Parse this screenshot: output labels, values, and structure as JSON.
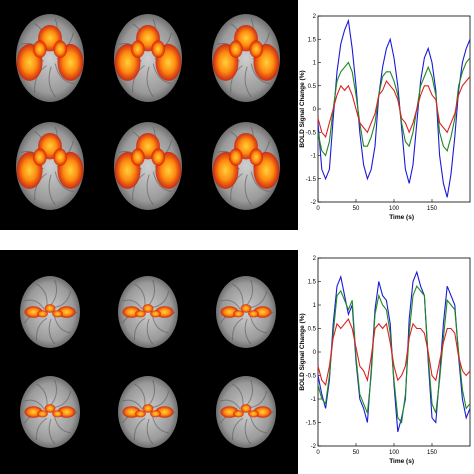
{
  "colors": {
    "blue": "#1a1ad8",
    "green": "#1e8a1e",
    "red": "#e02020",
    "activation_hot": "#ffd23a",
    "activation_cold": "#d21a00"
  },
  "brain_panels": [
    {
      "rows": 2,
      "cols": 3,
      "pattern": "temporal"
    },
    {
      "rows": 2,
      "cols": 3,
      "pattern": "motor"
    }
  ],
  "chart_data": [
    {
      "type": "line",
      "ylabel": "BOLD Signal Change (%)",
      "xlabel": "Time (s)",
      "xlim": [
        0,
        200
      ],
      "ylim": [
        -2,
        2
      ],
      "xticks": [
        "0",
        "50",
        "100",
        "150"
      ],
      "yticks": [
        "2",
        "1.5",
        "1",
        "0.5",
        "0",
        "-0.5",
        "-1",
        "-1.5",
        "-2"
      ],
      "series": [
        {
          "color": "#1a1ad8",
          "x": [
            0,
            5,
            10,
            15,
            20,
            25,
            30,
            35,
            40,
            45,
            50,
            55,
            60,
            65,
            70,
            75,
            80,
            85,
            90,
            95,
            100,
            105,
            110,
            115,
            120,
            125,
            130,
            135,
            140,
            145,
            150,
            155,
            160,
            165,
            170,
            175,
            180,
            185,
            190,
            195,
            200
          ],
          "y": [
            -0.3,
            -1.3,
            -1.5,
            -1.3,
            -0.2,
            0.8,
            1.4,
            1.7,
            1.9,
            1.3,
            0.5,
            -0.5,
            -1.2,
            -1.5,
            -1.3,
            -0.8,
            0.3,
            0.9,
            1.3,
            1.5,
            1.1,
            0.5,
            -0.4,
            -1.3,
            -1.6,
            -1.2,
            -0.3,
            0.6,
            1.1,
            1.3,
            1.0,
            0.4,
            -1.0,
            -1.6,
            -1.9,
            -1.4,
            -0.6,
            0.4,
            1.0,
            1.3,
            1.5
          ]
        },
        {
          "color": "#1e8a1e",
          "x": [
            0,
            5,
            10,
            15,
            20,
            25,
            30,
            35,
            40,
            45,
            50,
            55,
            60,
            65,
            70,
            75,
            80,
            85,
            90,
            95,
            100,
            105,
            110,
            115,
            120,
            125,
            130,
            135,
            140,
            145,
            150,
            155,
            160,
            165,
            170,
            175,
            180,
            185,
            190,
            195,
            200
          ],
          "y": [
            -0.5,
            -0.9,
            -1.0,
            -0.7,
            0.0,
            0.6,
            0.8,
            0.9,
            1.0,
            0.8,
            0.3,
            -0.3,
            -0.8,
            -0.8,
            -0.6,
            -0.3,
            0.3,
            0.7,
            0.8,
            0.8,
            0.6,
            0.3,
            -0.3,
            -0.7,
            -0.8,
            -0.5,
            0.0,
            0.5,
            0.7,
            0.9,
            0.7,
            0.3,
            -0.5,
            -0.8,
            -0.9,
            -0.6,
            -0.2,
            0.5,
            0.8,
            1.0,
            1.1
          ]
        },
        {
          "color": "#e02020",
          "x": [
            0,
            5,
            10,
            15,
            20,
            25,
            30,
            35,
            40,
            45,
            50,
            55,
            60,
            65,
            70,
            75,
            80,
            85,
            90,
            95,
            100,
            105,
            110,
            115,
            120,
            125,
            130,
            135,
            140,
            145,
            150,
            155,
            160,
            165,
            170,
            175,
            180,
            185,
            190,
            195,
            200
          ],
          "y": [
            -0.2,
            -0.5,
            -0.6,
            -0.3,
            0.0,
            0.3,
            0.5,
            0.4,
            0.5,
            0.3,
            0.0,
            -0.3,
            -0.4,
            -0.5,
            -0.3,
            -0.1,
            0.3,
            0.4,
            0.6,
            0.5,
            0.4,
            0.2,
            -0.2,
            -0.3,
            -0.5,
            -0.3,
            0.0,
            0.3,
            0.5,
            0.5,
            0.3,
            0.2,
            -0.3,
            -0.4,
            -0.5,
            -0.3,
            -0.1,
            0.3,
            0.5,
            0.6,
            0.7
          ]
        }
      ]
    },
    {
      "type": "line",
      "ylabel": "BOLD Signal Change (%)",
      "xlabel": "Time (s)",
      "xlim": [
        0,
        200
      ],
      "ylim": [
        -2,
        2
      ],
      "xticks": [
        "0",
        "50",
        "100",
        "150"
      ],
      "yticks": [
        "2",
        "1.5",
        "1",
        "0.5",
        "0",
        "-0.5",
        "-1",
        "-1.5",
        "-2"
      ],
      "series": [
        {
          "color": "#1a1ad8",
          "x": [
            0,
            5,
            10,
            15,
            20,
            25,
            30,
            35,
            40,
            45,
            50,
            55,
            60,
            65,
            70,
            75,
            80,
            85,
            90,
            95,
            100,
            105,
            110,
            115,
            120,
            125,
            130,
            135,
            140,
            145,
            150,
            155,
            160,
            165,
            170,
            175,
            180,
            185,
            190,
            195,
            200
          ],
          "y": [
            -0.5,
            -0.9,
            -1.2,
            -0.6,
            0.6,
            1.4,
            1.6,
            1.2,
            0.8,
            1.0,
            -0.2,
            -1.0,
            -1.2,
            -1.5,
            -0.4,
            0.9,
            1.5,
            1.2,
            1.1,
            0.6,
            -0.7,
            -1.7,
            -1.4,
            -1.0,
            0.7,
            1.5,
            1.7,
            1.4,
            1.2,
            -0.2,
            -1.4,
            -1.5,
            -0.5,
            0.6,
            1.4,
            1.2,
            1.0,
            -0.1,
            -1.0,
            -1.4,
            -1.2
          ]
        },
        {
          "color": "#1e8a1e",
          "x": [
            0,
            5,
            10,
            15,
            20,
            25,
            30,
            35,
            40,
            45,
            50,
            55,
            60,
            65,
            70,
            75,
            80,
            85,
            90,
            95,
            100,
            105,
            110,
            115,
            120,
            125,
            130,
            135,
            140,
            145,
            150,
            155,
            160,
            165,
            170,
            175,
            180,
            185,
            190,
            195,
            200
          ],
          "y": [
            -0.7,
            -1.0,
            -1.1,
            -0.5,
            0.4,
            1.2,
            1.3,
            1.1,
            0.9,
            1.1,
            -0.1,
            -0.9,
            -1.1,
            -1.3,
            -0.5,
            0.8,
            1.2,
            1.0,
            0.9,
            0.4,
            -0.6,
            -1.4,
            -1.5,
            -0.9,
            0.4,
            1.2,
            1.4,
            1.3,
            1.2,
            -0.1,
            -1.1,
            -1.3,
            -0.6,
            0.3,
            1.1,
            1.0,
            0.9,
            0.0,
            -0.8,
            -1.2,
            -1.1
          ]
        },
        {
          "color": "#e02020",
          "x": [
            0,
            5,
            10,
            15,
            20,
            25,
            30,
            35,
            40,
            45,
            50,
            55,
            60,
            65,
            70,
            75,
            80,
            85,
            90,
            95,
            100,
            105,
            110,
            115,
            120,
            125,
            130,
            135,
            140,
            145,
            150,
            155,
            160,
            165,
            170,
            175,
            180,
            185,
            190,
            195,
            200
          ],
          "y": [
            -0.3,
            -0.6,
            -0.7,
            -0.3,
            0.3,
            0.6,
            0.5,
            0.6,
            0.7,
            0.5,
            0.1,
            -0.3,
            -0.4,
            -0.6,
            -0.1,
            0.5,
            0.6,
            0.5,
            0.6,
            0.2,
            -0.3,
            -0.6,
            -0.5,
            -0.3,
            0.3,
            0.6,
            0.5,
            0.5,
            0.4,
            0.0,
            -0.5,
            -0.6,
            -0.2,
            0.2,
            0.5,
            0.5,
            0.4,
            -0.1,
            -0.4,
            -0.5,
            -0.4
          ]
        }
      ]
    }
  ]
}
